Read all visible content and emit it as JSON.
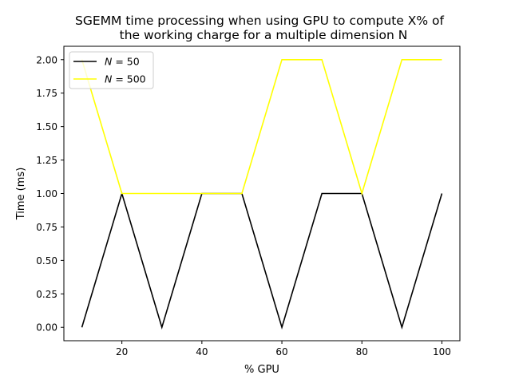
{
  "chart_data": {
    "type": "line",
    "title_lines": [
      "SGEMM time processing when using GPU to compute X% of",
      "the working charge for a multiple dimension N"
    ],
    "xlabel": "% GPU",
    "ylabel": "Time (ms)",
    "xlim": [
      5.5,
      104.5
    ],
    "ylim": [
      -0.1,
      2.1
    ],
    "x_ticks": [
      20,
      40,
      60,
      80,
      100
    ],
    "y_ticks": [
      0.0,
      0.25,
      0.5,
      0.75,
      1.0,
      1.25,
      1.5,
      1.75,
      2.0
    ],
    "y_tick_labels": [
      "0.00",
      "0.25",
      "0.50",
      "0.75",
      "1.00",
      "1.25",
      "1.50",
      "1.75",
      "2.00"
    ],
    "grid": false,
    "legend_position": "top-left",
    "x": [
      10,
      20,
      30,
      40,
      50,
      60,
      70,
      80,
      90,
      100
    ],
    "series": [
      {
        "name": "N = 50",
        "values": [
          0,
          1,
          0,
          1,
          1,
          0,
          1,
          1,
          0,
          1
        ]
      },
      {
        "name": "N = 500",
        "values": [
          2,
          1,
          1,
          1,
          1,
          2,
          2,
          1,
          2,
          2
        ]
      }
    ],
    "legend_labels": [
      {
        "prefix": "N",
        "suffix": " = 50"
      },
      {
        "prefix": "N",
        "suffix": " = 500"
      }
    ],
    "colors": {
      "N = 50": "#000000",
      "N = 500": "#ffff00"
    }
  }
}
